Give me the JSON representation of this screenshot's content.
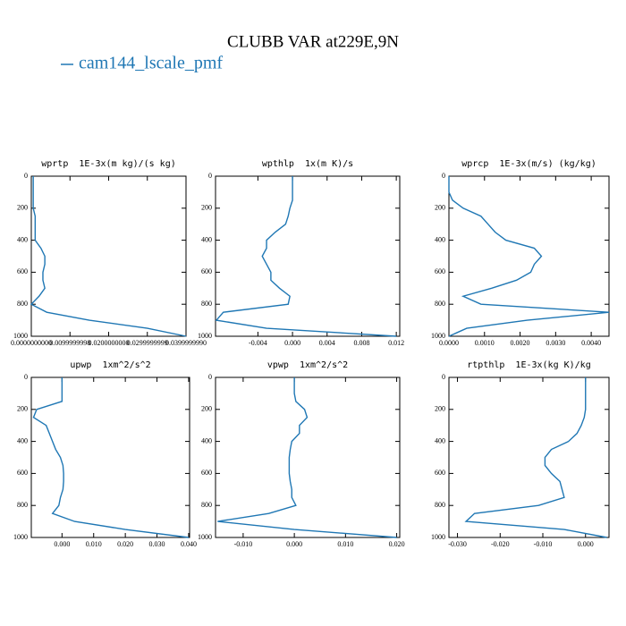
{
  "title": "CLUBB VAR at229E,9N",
  "legend": {
    "label": "cam144_lscale_pmf",
    "color": "#1f77b4"
  },
  "chart_data": [
    {
      "type": "line",
      "title": "wprtp  1E-3x(m kg)/(s kg)",
      "y": [
        0,
        100,
        150,
        200,
        250,
        300,
        350,
        400,
        450,
        500,
        550,
        600,
        650,
        700,
        750,
        800,
        850,
        900,
        950,
        1000
      ],
      "series": [
        {
          "color": "#1f77b4",
          "values": [
            0.0005,
            0.0005,
            0.0005,
            0.0005,
            0.001,
            0.001,
            0.001,
            0.001,
            0.0025,
            0.0035,
            0.0035,
            0.003,
            0.003,
            0.0035,
            0.002,
            0,
            0.004,
            0.015,
            0.03,
            0.04
          ]
        }
      ],
      "xlim": [
        0,
        0.04
      ],
      "ylim": [
        1000,
        0
      ],
      "xticks": [
        {
          "value": 0,
          "label": "0.0000000000"
        },
        {
          "value": 0.01,
          "label": "0.0099999998"
        },
        {
          "value": 0.02,
          "label": "0.0200000000"
        },
        {
          "value": 0.03,
          "label": "0.0299999999"
        },
        {
          "value": 0.04,
          "label": "0.0399999990"
        }
      ],
      "yticks": [
        0,
        200,
        400,
        600,
        800,
        1000
      ]
    },
    {
      "type": "line",
      "title": "wpthlp  1x(m K)/s",
      "y": [
        0,
        100,
        150,
        200,
        250,
        300,
        350,
        400,
        450,
        500,
        550,
        600,
        650,
        700,
        750,
        800,
        850,
        900,
        950,
        1000
      ],
      "series": [
        {
          "color": "#1f77b4",
          "values": [
            0,
            0,
            0,
            -0.0003,
            -0.0005,
            -0.0008,
            -0.002,
            -0.003,
            -0.003,
            -0.0035,
            -0.003,
            -0.0025,
            -0.0025,
            -0.0015,
            -0.0003,
            -0.0005,
            -0.008,
            -0.0088,
            -0.003,
            0.012
          ]
        }
      ],
      "xlim": [
        -0.0089,
        0.0124
      ],
      "ylim": [
        1000,
        0
      ],
      "xticks": [
        {
          "value": -0.004,
          "label": "-0.004"
        },
        {
          "value": 0,
          "label": "0.000"
        },
        {
          "value": 0.004,
          "label": "0.004"
        },
        {
          "value": 0.008,
          "label": "0.008"
        },
        {
          "value": 0.012,
          "label": "0.012"
        }
      ],
      "yticks": [
        0,
        200,
        400,
        600,
        800,
        1000
      ]
    },
    {
      "type": "line",
      "title": "wprcp  1E-3x(m/s) (kg/kg)",
      "y": [
        0,
        100,
        150,
        200,
        250,
        300,
        350,
        400,
        450,
        500,
        550,
        600,
        650,
        700,
        750,
        800,
        850,
        900,
        950,
        1000
      ],
      "series": [
        {
          "color": "#1f77b4",
          "values": [
            0,
            0,
            0.0001,
            0.0004,
            0.0009,
            0.0011,
            0.0013,
            0.0016,
            0.0024,
            0.0026,
            0.0024,
            0.0023,
            0.0019,
            0.0012,
            0.0004,
            0.0009,
            0.0045,
            0.0022,
            0.0005,
            0
          ]
        }
      ],
      "xlim": [
        0,
        0.0045
      ],
      "ylim": [
        1000,
        0
      ],
      "xticks": [
        {
          "value": 0,
          "label": "0.0000"
        },
        {
          "value": 0.001,
          "label": "0.0010"
        },
        {
          "value": 0.002,
          "label": "0.0020"
        },
        {
          "value": 0.003,
          "label": "0.0030"
        },
        {
          "value": 0.004,
          "label": "0.0040"
        }
      ],
      "yticks": [
        0,
        200,
        400,
        600,
        800,
        1000
      ]
    },
    {
      "type": "line",
      "title": "upwp  1xm^2/s^2",
      "y": [
        0,
        100,
        150,
        200,
        250,
        300,
        350,
        400,
        450,
        500,
        550,
        600,
        650,
        700,
        750,
        800,
        850,
        900,
        950,
        1000
      ],
      "series": [
        {
          "color": "#1f77b4",
          "values": [
            0,
            0,
            0,
            -0.008,
            -0.009,
            -0.005,
            -0.004,
            -0.003,
            -0.002,
            -0.0005,
            0.0003,
            0.0005,
            0.0005,
            0.0003,
            -0.0005,
            -0.001,
            -0.003,
            0.004,
            0.02,
            0.04
          ]
        }
      ],
      "xlim": [
        -0.0097,
        0.0403
      ],
      "ylim": [
        1000,
        0
      ],
      "xticks": [
        {
          "value": 0,
          "label": "0.000"
        },
        {
          "value": 0.01,
          "label": "0.010"
        },
        {
          "value": 0.02,
          "label": "0.020"
        },
        {
          "value": 0.03,
          "label": "0.030"
        },
        {
          "value": 0.04,
          "label": "0.040"
        }
      ],
      "yticks": [
        0,
        200,
        400,
        600,
        800,
        1000
      ]
    },
    {
      "type": "line",
      "title": "vpwp  1xm^2/s^2",
      "y": [
        0,
        100,
        150,
        200,
        250,
        300,
        350,
        400,
        450,
        500,
        550,
        600,
        650,
        700,
        750,
        800,
        850,
        900,
        950,
        1000
      ],
      "series": [
        {
          "color": "#1f77b4",
          "values": [
            0,
            0,
            0.0003,
            0.002,
            0.0025,
            0.001,
            0.001,
            -0.0005,
            -0.0008,
            -0.001,
            -0.001,
            -0.001,
            -0.0008,
            -0.0005,
            -0.0005,
            0.0003,
            -0.005,
            -0.015,
            0,
            0.02
          ]
        }
      ],
      "xlim": [
        -0.0154,
        0.0206
      ],
      "ylim": [
        1000,
        0
      ],
      "xticks": [
        {
          "value": -0.01,
          "label": "-0.010"
        },
        {
          "value": 0,
          "label": "0.000"
        },
        {
          "value": 0.01,
          "label": "0.010"
        },
        {
          "value": 0.02,
          "label": "0.020"
        }
      ],
      "yticks": [
        0,
        200,
        400,
        600,
        800,
        1000
      ]
    },
    {
      "type": "line",
      "title": "rtpthlp  1E-3x(kg K)/kg",
      "y": [
        0,
        100,
        150,
        200,
        250,
        300,
        350,
        400,
        450,
        500,
        550,
        600,
        650,
        700,
        750,
        800,
        850,
        900,
        950,
        1000
      ],
      "series": [
        {
          "color": "#1f77b4",
          "values": [
            0,
            0,
            0,
            0,
            -0.0003,
            -0.001,
            -0.002,
            -0.004,
            -0.008,
            -0.0095,
            -0.0095,
            -0.008,
            -0.006,
            -0.0055,
            -0.005,
            -0.011,
            -0.026,
            -0.028,
            -0.005,
            0.005
          ]
        }
      ],
      "xlim": [
        -0.032,
        0.0055
      ],
      "ylim": [
        1000,
        0
      ],
      "xticks": [
        {
          "value": -0.03,
          "label": "-0.030"
        },
        {
          "value": -0.02,
          "label": "-0.020"
        },
        {
          "value": -0.01,
          "label": "-0.010"
        },
        {
          "value": 0,
          "label": "0.000"
        }
      ],
      "yticks": [
        0,
        200,
        400,
        600,
        800,
        1000
      ]
    }
  ]
}
